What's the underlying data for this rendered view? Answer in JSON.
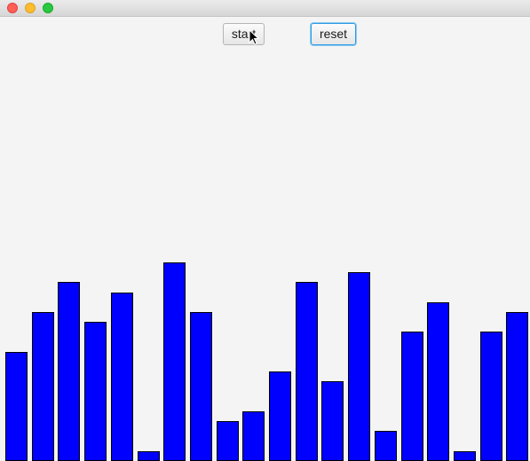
{
  "window": {
    "traffic_lights": {
      "close": "#fe5f57",
      "minimize": "#febc2e",
      "maximize": "#28c840"
    }
  },
  "controls": {
    "start_label": "start",
    "reset_label": "reset"
  },
  "chart_data": {
    "type": "bar",
    "bar_color": "#0000ff",
    "border_color": "#000000",
    "values": [
      22,
      30,
      36,
      28,
      34,
      2,
      40,
      30,
      8,
      10,
      18,
      36,
      16,
      38,
      6,
      26,
      32,
      2,
      26,
      30
    ],
    "max_value": 40
  }
}
